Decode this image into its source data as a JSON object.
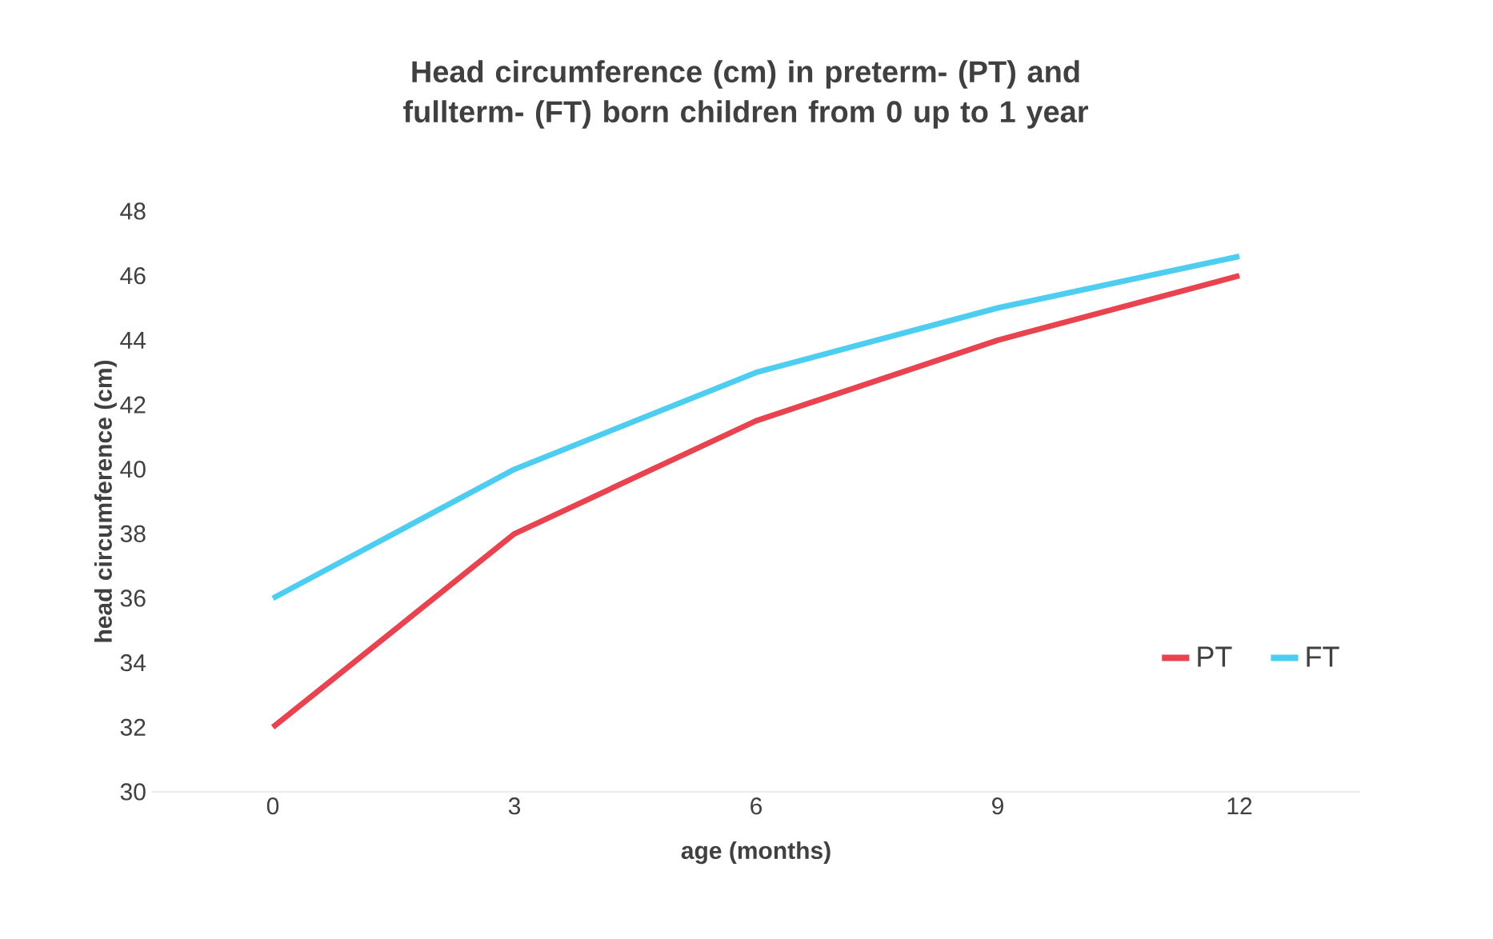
{
  "chart_data": {
    "type": "line",
    "title": "Head circumference (cm) in preterm- (PT) and fullterm- (FT) born children from 0 up to 1 year",
    "xlabel": "age (months)",
    "ylabel": "head circumference (cm)",
    "categories": [
      "0",
      "3",
      "6",
      "9",
      "12"
    ],
    "series": [
      {
        "name": "PT",
        "color": "#e8434f",
        "values": [
          32,
          38,
          41.5,
          44,
          46
        ]
      },
      {
        "name": "FT",
        "color": "#4dcdf0",
        "values": [
          36,
          40,
          43,
          45,
          46.6
        ]
      }
    ],
    "ylim": [
      30,
      48
    ],
    "yticks": [
      30,
      32,
      34,
      36,
      38,
      40,
      42,
      44,
      46,
      48
    ],
    "legend": "bottom right",
    "grid": false,
    "marker": "none",
    "line_style": "solid"
  }
}
